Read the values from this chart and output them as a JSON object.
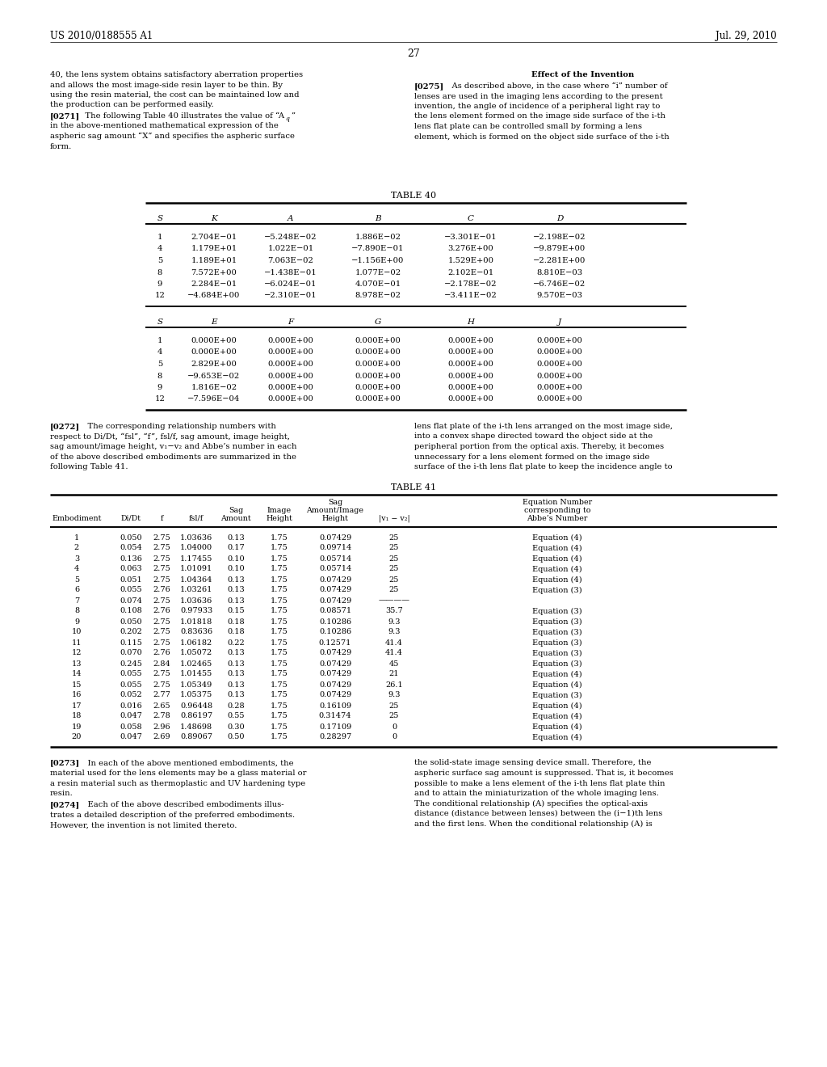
{
  "header_left": "US 2010/0188555 A1",
  "header_right": "Jul. 29, 2010",
  "page_number": "27",
  "table40_title": "TABLE 40",
  "table40_cols1": [
    "S",
    "K",
    "A",
    "B",
    "C",
    "D"
  ],
  "table40_data1": [
    [
      "1",
      "2.704E−01",
      "−5.248E−02",
      "1.886E−02",
      "−3.301E−01",
      "−2.198E−02"
    ],
    [
      "4",
      "1.179E+01",
      "1.022E−01",
      "−7.890E−01",
      "3.276E+00",
      "−9.879E+00"
    ],
    [
      "5",
      "1.189E+01",
      "7.063E−02",
      "−1.156E+00",
      "1.529E+00",
      "−2.281E+00"
    ],
    [
      "8",
      "7.572E+00",
      "−1.438E−01",
      "1.077E−02",
      "2.102E−01",
      "8.810E−03"
    ],
    [
      "9",
      "2.284E−01",
      "−6.024E−01",
      "4.070E−01",
      "−2.178E−02",
      "−6.746E−02"
    ],
    [
      "12",
      "−4.684E+00",
      "−2.310E−01",
      "8.978E−02",
      "−3.411E−02",
      "9.570E−03"
    ]
  ],
  "table40_cols2": [
    "S",
    "E",
    "F",
    "G",
    "H",
    "J"
  ],
  "table40_data2": [
    [
      "1",
      "0.000E+00",
      "0.000E+00",
      "0.000E+00",
      "0.000E+00",
      "0.000E+00"
    ],
    [
      "4",
      "0.000E+00",
      "0.000E+00",
      "0.000E+00",
      "0.000E+00",
      "0.000E+00"
    ],
    [
      "5",
      "2.829E+00",
      "0.000E+00",
      "0.000E+00",
      "0.000E+00",
      "0.000E+00"
    ],
    [
      "8",
      "−9.653E−02",
      "0.000E+00",
      "0.000E+00",
      "0.000E+00",
      "0.000E+00"
    ],
    [
      "9",
      "1.816E−02",
      "0.000E+00",
      "0.000E+00",
      "0.000E+00",
      "0.000E+00"
    ],
    [
      "12",
      "−7.596E−04",
      "0.000E+00",
      "0.000E+00",
      "0.000E+00",
      "0.000E+00"
    ]
  ],
  "table41_title": "TABLE 41",
  "table41_data": [
    [
      "1",
      "0.050",
      "2.75",
      "1.03636",
      "0.13",
      "1.75",
      "0.07429",
      "25",
      "Equation (4)"
    ],
    [
      "2",
      "0.054",
      "2.75",
      "1.04000",
      "0.17",
      "1.75",
      "0.09714",
      "25",
      "Equation (4)"
    ],
    [
      "3",
      "0.136",
      "2.75",
      "1.17455",
      "0.10",
      "1.75",
      "0.05714",
      "25",
      "Equation (4)"
    ],
    [
      "4",
      "0.063",
      "2.75",
      "1.01091",
      "0.10",
      "1.75",
      "0.05714",
      "25",
      "Equation (4)"
    ],
    [
      "5",
      "0.051",
      "2.75",
      "1.04364",
      "0.13",
      "1.75",
      "0.07429",
      "25",
      "Equation (4)"
    ],
    [
      "6",
      "0.055",
      "2.76",
      "1.03261",
      "0.13",
      "1.75",
      "0.07429",
      "25",
      "Equation (3)"
    ],
    [
      "7",
      "0.074",
      "2.75",
      "1.03636",
      "0.13",
      "1.75",
      "0.07429",
      "————",
      ""
    ],
    [
      "8",
      "0.108",
      "2.76",
      "0.97933",
      "0.15",
      "1.75",
      "0.08571",
      "35.7",
      "Equation (3)"
    ],
    [
      "9",
      "0.050",
      "2.75",
      "1.01818",
      "0.18",
      "1.75",
      "0.10286",
      "9.3",
      "Equation (3)"
    ],
    [
      "10",
      "0.202",
      "2.75",
      "0.83636",
      "0.18",
      "1.75",
      "0.10286",
      "9.3",
      "Equation (3)"
    ],
    [
      "11",
      "0.115",
      "2.75",
      "1.06182",
      "0.22",
      "1.75",
      "0.12571",
      "41.4",
      "Equation (3)"
    ],
    [
      "12",
      "0.070",
      "2.76",
      "1.05072",
      "0.13",
      "1.75",
      "0.07429",
      "41.4",
      "Equation (3)"
    ],
    [
      "13",
      "0.245",
      "2.84",
      "1.02465",
      "0.13",
      "1.75",
      "0.07429",
      "45",
      "Equation (3)"
    ],
    [
      "14",
      "0.055",
      "2.75",
      "1.01455",
      "0.13",
      "1.75",
      "0.07429",
      "21",
      "Equation (4)"
    ],
    [
      "15",
      "0.055",
      "2.75",
      "1.05349",
      "0.13",
      "1.75",
      "0.07429",
      "26.1",
      "Equation (4)"
    ],
    [
      "16",
      "0.052",
      "2.77",
      "1.05375",
      "0.13",
      "1.75",
      "0.07429",
      "9.3",
      "Equation (3)"
    ],
    [
      "17",
      "0.016",
      "2.65",
      "0.96448",
      "0.28",
      "1.75",
      "0.16109",
      "25",
      "Equation (4)"
    ],
    [
      "18",
      "0.047",
      "2.78",
      "0.86197",
      "0.55",
      "1.75",
      "0.31474",
      "25",
      "Equation (4)"
    ],
    [
      "19",
      "0.058",
      "2.96",
      "1.48698",
      "0.30",
      "1.75",
      "0.17109",
      "0",
      "Equation (4)"
    ],
    [
      "20",
      "0.047",
      "2.69",
      "0.89067",
      "0.50",
      "1.75",
      "0.28297",
      "0",
      "Equation (4)"
    ]
  ]
}
